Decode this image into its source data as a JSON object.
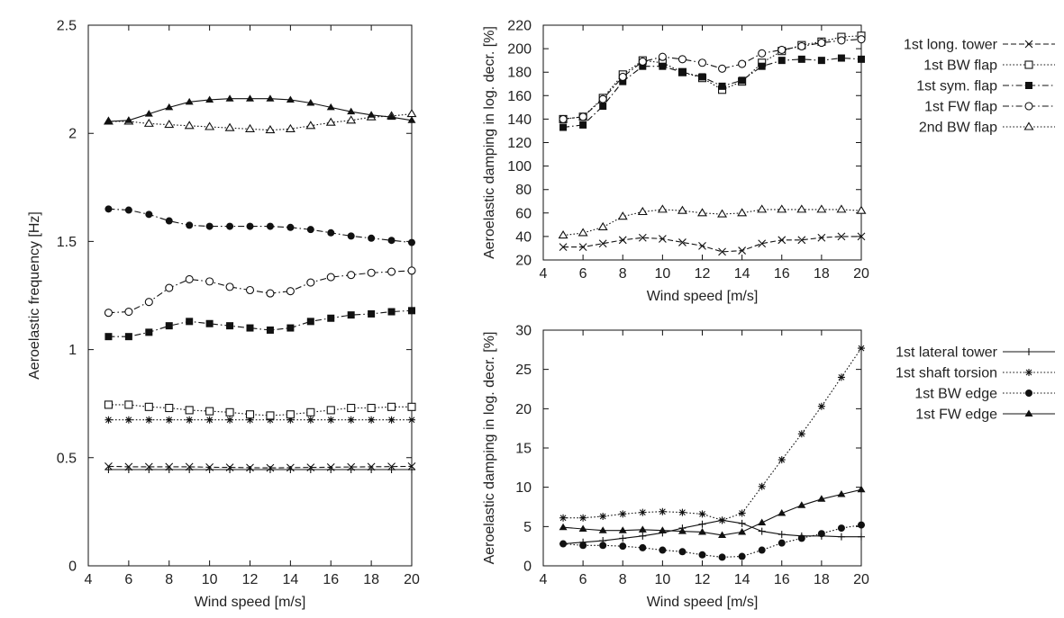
{
  "chart_data": [
    {
      "id": "freq",
      "type": "line",
      "xlabel": "Wind speed [m/s]",
      "ylabel": "Aeroelastic frequency [Hz]",
      "xlim": [
        4,
        20
      ],
      "ylim": [
        0,
        2.5
      ],
      "xticks": [
        "4",
        "6",
        "8",
        "10",
        "12",
        "14",
        "16",
        "18",
        "20"
      ],
      "yticks": [
        "0",
        "0.5",
        "1",
        "1.5",
        "2",
        "2.5"
      ],
      "grid": false,
      "legend": "none",
      "x": [
        5,
        6,
        7,
        8,
        9,
        10,
        11,
        12,
        13,
        14,
        15,
        16,
        17,
        18,
        19,
        20
      ],
      "series": [
        {
          "key": "lateral_tower",
          "marker": "plus",
          "dash": "solid",
          "values": [
            0.445,
            0.445,
            0.445,
            0.445,
            0.445,
            0.445,
            0.445,
            0.445,
            0.445,
            0.445,
            0.445,
            0.445,
            0.445,
            0.445,
            0.445,
            0.445
          ]
        },
        {
          "key": "long_tower",
          "marker": "x",
          "dash": "dashed",
          "values": [
            0.46,
            0.458,
            0.458,
            0.458,
            0.458,
            0.456,
            0.455,
            0.454,
            0.453,
            0.454,
            0.455,
            0.456,
            0.457,
            0.458,
            0.459,
            0.46
          ]
        },
        {
          "key": "shaft_torsion",
          "marker": "star",
          "dash": "dotted",
          "values": [
            0.675,
            0.675,
            0.675,
            0.675,
            0.675,
            0.675,
            0.675,
            0.675,
            0.675,
            0.675,
            0.675,
            0.675,
            0.675,
            0.675,
            0.675,
            0.675
          ]
        },
        {
          "key": "bw_flap",
          "marker": "square-open",
          "dash": "dotted",
          "values": [
            0.745,
            0.745,
            0.735,
            0.73,
            0.72,
            0.715,
            0.71,
            0.7,
            0.695,
            0.7,
            0.71,
            0.72,
            0.73,
            0.73,
            0.735,
            0.735
          ]
        },
        {
          "key": "sym_flap",
          "marker": "square-filled",
          "dash": "dashdot",
          "values": [
            1.06,
            1.06,
            1.08,
            1.11,
            1.13,
            1.12,
            1.11,
            1.1,
            1.09,
            1.1,
            1.13,
            1.145,
            1.16,
            1.165,
            1.175,
            1.18
          ]
        },
        {
          "key": "fw_flap",
          "marker": "circle-open",
          "dash": "dashdot",
          "values": [
            1.17,
            1.175,
            1.22,
            1.285,
            1.325,
            1.315,
            1.29,
            1.275,
            1.26,
            1.27,
            1.31,
            1.335,
            1.345,
            1.355,
            1.36,
            1.365
          ]
        },
        {
          "key": "bw_edge",
          "marker": "circle-filled",
          "dash": "dashdot",
          "values": [
            1.65,
            1.645,
            1.625,
            1.595,
            1.575,
            1.57,
            1.57,
            1.57,
            1.57,
            1.565,
            1.555,
            1.54,
            1.525,
            1.515,
            1.505,
            1.495
          ]
        },
        {
          "key": "bw_flap2",
          "marker": "triangle-open",
          "dash": "dotted",
          "values": [
            2.055,
            2.055,
            2.045,
            2.04,
            2.035,
            2.03,
            2.025,
            2.02,
            2.015,
            2.02,
            2.035,
            2.05,
            2.06,
            2.075,
            2.08,
            2.09
          ]
        },
        {
          "key": "fw_edge",
          "marker": "triangle-filled",
          "dash": "solid",
          "values": [
            2.055,
            2.06,
            2.09,
            2.12,
            2.145,
            2.155,
            2.16,
            2.16,
            2.16,
            2.155,
            2.14,
            2.12,
            2.1,
            2.085,
            2.075,
            2.06
          ]
        }
      ]
    },
    {
      "id": "damp_top",
      "type": "line",
      "xlabel": "Wind speed [m/s]",
      "ylabel": "Aeroelastic damping in log. decr. [%]",
      "xlim": [
        4,
        20
      ],
      "ylim": [
        20,
        220
      ],
      "xticks": [
        "4",
        "6",
        "8",
        "10",
        "12",
        "14",
        "16",
        "18",
        "20"
      ],
      "yticks": [
        "20",
        "40",
        "60",
        "80",
        "100",
        "120",
        "140",
        "160",
        "180",
        "200",
        "220"
      ],
      "grid": false,
      "legend": "right",
      "x": [
        5,
        6,
        7,
        8,
        9,
        10,
        11,
        12,
        13,
        14,
        15,
        16,
        17,
        18,
        19,
        20
      ],
      "series": [
        {
          "name": "1st long. tower",
          "marker": "x",
          "dash": "dashed",
          "values": [
            31,
            31,
            34,
            37,
            39,
            38,
            35,
            32,
            27,
            28,
            34,
            37,
            37,
            39,
            40,
            40
          ]
        },
        {
          "name": "1st BW flap",
          "marker": "square-open",
          "dash": "dotted",
          "values": [
            140,
            142,
            158,
            178,
            190,
            188,
            180,
            175,
            165,
            172,
            188,
            198,
            203,
            206,
            210,
            211
          ]
        },
        {
          "name": "1st sym. flap",
          "marker": "square-filled",
          "dash": "dashdot",
          "values": [
            133,
            135,
            151,
            172,
            185,
            185,
            180,
            176,
            168,
            173,
            185,
            190,
            191,
            190,
            192,
            191
          ]
        },
        {
          "name": "1st FW flap",
          "marker": "circle-open",
          "dash": "dashdot",
          "values": [
            140,
            142,
            157,
            176,
            189,
            193,
            191,
            188,
            183,
            187,
            196,
            199,
            202,
            205,
            207,
            208
          ]
        },
        {
          "name": "2nd BW flap",
          "marker": "triangle-open",
          "dash": "dotted",
          "values": [
            41,
            43,
            48,
            57,
            61,
            63,
            62,
            60,
            59,
            60,
            63,
            63,
            63,
            63,
            63,
            62
          ]
        }
      ]
    },
    {
      "id": "damp_bottom",
      "type": "line",
      "xlabel": "Wind speed [m/s]",
      "ylabel": "Aeroelastic damping in log. decr. [%]",
      "xlim": [
        4,
        20
      ],
      "ylim": [
        0,
        30
      ],
      "xticks": [
        "4",
        "6",
        "8",
        "10",
        "12",
        "14",
        "16",
        "18",
        "20"
      ],
      "yticks": [
        "0",
        "5",
        "10",
        "15",
        "20",
        "25",
        "30"
      ],
      "grid": false,
      "legend": "right",
      "x": [
        5,
        6,
        7,
        8,
        9,
        10,
        11,
        12,
        13,
        14,
        15,
        16,
        17,
        18,
        19,
        20
      ],
      "series": [
        {
          "name": "1st lateral tower",
          "marker": "plus",
          "dash": "solid",
          "values": [
            2.8,
            3.0,
            3.2,
            3.5,
            3.8,
            4.2,
            4.8,
            5.3,
            5.8,
            5.4,
            4.4,
            4.0,
            3.8,
            3.8,
            3.7,
            3.7
          ]
        },
        {
          "name": "1st shaft torsion",
          "marker": "star",
          "dash": "dotted",
          "values": [
            6.1,
            6.1,
            6.3,
            6.6,
            6.8,
            6.9,
            6.8,
            6.6,
            5.8,
            6.7,
            10.1,
            13.5,
            16.8,
            20.3,
            24.0,
            27.7
          ]
        },
        {
          "name": "1st BW edge",
          "marker": "circle-filled",
          "dash": "dotted",
          "values": [
            2.8,
            2.6,
            2.6,
            2.5,
            2.3,
            2.0,
            1.8,
            1.4,
            1.1,
            1.2,
            2.0,
            2.9,
            3.5,
            4.1,
            4.8,
            5.2
          ]
        },
        {
          "name": "1st FW edge",
          "marker": "triangle-filled",
          "dash": "solid",
          "values": [
            4.9,
            4.7,
            4.5,
            4.5,
            4.6,
            4.5,
            4.4,
            4.3,
            3.9,
            4.3,
            5.5,
            6.7,
            7.7,
            8.5,
            9.1,
            9.7
          ]
        }
      ]
    }
  ]
}
